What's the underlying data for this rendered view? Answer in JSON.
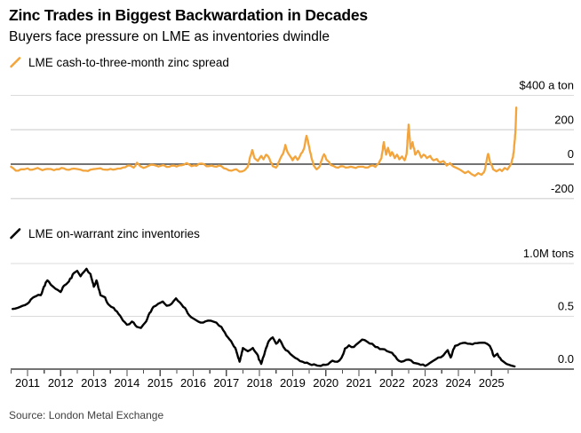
{
  "header": {
    "title": "Zinc Trades in Biggest Backwardation in Decades",
    "subtitle": "Buyers face pressure on LME as inventories dwindle"
  },
  "source": "Source: London Metal Exchange",
  "colors": {
    "spread_line": "#F3A43B",
    "inventory_line": "#000000",
    "gridline": "#DBDBDB",
    "zero_line": "#737373",
    "tick": "#4d4d4d"
  },
  "xaxis": {
    "tick_years": [
      "2011",
      "2012",
      "2013",
      "2014",
      "2015",
      "2016",
      "2017",
      "2018",
      "2019",
      "2020",
      "2021",
      "2022",
      "2023",
      "2024",
      "2025"
    ],
    "range": [
      2010.5,
      2026.0
    ]
  },
  "chart_data": [
    {
      "type": "line",
      "title": "LME cash-to-three-month zinc spread",
      "legend": "LME cash-to-three-month zinc spread",
      "color": "#F3A43B",
      "ylabel": "$ a ton",
      "ylim": [
        -260,
        430
      ],
      "grid": true,
      "zero_line": true,
      "yticks": {
        "values": [
          400,
          200,
          0,
          -200
        ],
        "labels": [
          "$400 a ton",
          "200",
          "0",
          "-200"
        ]
      },
      "points": [
        [
          2010.5,
          -15
        ],
        [
          2010.65,
          -38
        ],
        [
          2010.8,
          -30
        ],
        [
          2011.0,
          -25
        ],
        [
          2011.15,
          -32
        ],
        [
          2011.3,
          -22
        ],
        [
          2011.45,
          -35
        ],
        [
          2011.6,
          -28
        ],
        [
          2011.8,
          -35
        ],
        [
          2011.95,
          -30
        ],
        [
          2012.1,
          -25
        ],
        [
          2012.25,
          -33
        ],
        [
          2012.4,
          -26
        ],
        [
          2012.6,
          -32
        ],
        [
          2012.75,
          -38
        ],
        [
          2012.9,
          -32
        ],
        [
          2013.05,
          -28
        ],
        [
          2013.2,
          -24
        ],
        [
          2013.35,
          -32
        ],
        [
          2013.5,
          -28
        ],
        [
          2013.65,
          -30
        ],
        [
          2013.8,
          -26
        ],
        [
          2013.95,
          -18
        ],
        [
          2014.1,
          -8
        ],
        [
          2014.2,
          -20
        ],
        [
          2014.3,
          8
        ],
        [
          2014.4,
          -12
        ],
        [
          2014.5,
          -22
        ],
        [
          2014.65,
          -10
        ],
        [
          2014.8,
          -4
        ],
        [
          2014.95,
          -14
        ],
        [
          2015.1,
          -5
        ],
        [
          2015.2,
          -16
        ],
        [
          2015.35,
          -8
        ],
        [
          2015.5,
          -14
        ],
        [
          2015.65,
          -6
        ],
        [
          2015.8,
          6
        ],
        [
          2015.95,
          -12
        ],
        [
          2016.1,
          -10
        ],
        [
          2016.25,
          3
        ],
        [
          2016.4,
          -12
        ],
        [
          2016.55,
          -8
        ],
        [
          2016.7,
          -15
        ],
        [
          2016.85,
          -12
        ],
        [
          2017.0,
          -28
        ],
        [
          2017.15,
          -38
        ],
        [
          2017.3,
          -30
        ],
        [
          2017.4,
          -44
        ],
        [
          2017.55,
          -36
        ],
        [
          2017.65,
          -15
        ],
        [
          2017.72,
          45
        ],
        [
          2017.78,
          82
        ],
        [
          2017.85,
          35
        ],
        [
          2017.95,
          18
        ],
        [
          2018.05,
          48
        ],
        [
          2018.12,
          28
        ],
        [
          2018.2,
          55
        ],
        [
          2018.3,
          32
        ],
        [
          2018.4,
          -12
        ],
        [
          2018.5,
          -20
        ],
        [
          2018.57,
          8
        ],
        [
          2018.65,
          42
        ],
        [
          2018.72,
          65
        ],
        [
          2018.78,
          112
        ],
        [
          2018.85,
          68
        ],
        [
          2018.95,
          40
        ],
        [
          2019.0,
          22
        ],
        [
          2019.08,
          45
        ],
        [
          2019.15,
          25
        ],
        [
          2019.25,
          60
        ],
        [
          2019.35,
          95
        ],
        [
          2019.42,
          165
        ],
        [
          2019.5,
          100
        ],
        [
          2019.58,
          30
        ],
        [
          2019.65,
          -12
        ],
        [
          2019.72,
          -30
        ],
        [
          2019.8,
          -18
        ],
        [
          2019.88,
          25
        ],
        [
          2019.95,
          58
        ],
        [
          2020.05,
          20
        ],
        [
          2020.15,
          -5
        ],
        [
          2020.3,
          -18
        ],
        [
          2020.45,
          -12
        ],
        [
          2020.6,
          -20
        ],
        [
          2020.75,
          -15
        ],
        [
          2020.9,
          -22
        ],
        [
          2021.05,
          -15
        ],
        [
          2021.2,
          -20
        ],
        [
          2021.35,
          -10
        ],
        [
          2021.5,
          -16
        ],
        [
          2021.6,
          5
        ],
        [
          2021.68,
          35
        ],
        [
          2021.75,
          128
        ],
        [
          2021.82,
          55
        ],
        [
          2021.88,
          95
        ],
        [
          2021.95,
          48
        ],
        [
          2022.0,
          70
        ],
        [
          2022.08,
          35
        ],
        [
          2022.15,
          55
        ],
        [
          2022.22,
          28
        ],
        [
          2022.3,
          45
        ],
        [
          2022.38,
          22
        ],
        [
          2022.44,
          60
        ],
        [
          2022.5,
          230
        ],
        [
          2022.56,
          90
        ],
        [
          2022.62,
          128
        ],
        [
          2022.7,
          55
        ],
        [
          2022.78,
          78
        ],
        [
          2022.88,
          38
        ],
        [
          2022.95,
          55
        ],
        [
          2023.05,
          35
        ],
        [
          2023.15,
          48
        ],
        [
          2023.25,
          22
        ],
        [
          2023.35,
          30
        ],
        [
          2023.45,
          10
        ],
        [
          2023.55,
          18
        ],
        [
          2023.65,
          -8
        ],
        [
          2023.75,
          6
        ],
        [
          2023.85,
          -14
        ],
        [
          2023.95,
          -22
        ],
        [
          2024.1,
          -38
        ],
        [
          2024.2,
          -52
        ],
        [
          2024.3,
          -42
        ],
        [
          2024.4,
          -58
        ],
        [
          2024.5,
          -68
        ],
        [
          2024.6,
          -52
        ],
        [
          2024.7,
          -62
        ],
        [
          2024.78,
          -45
        ],
        [
          2024.85,
          15
        ],
        [
          2024.9,
          60
        ],
        [
          2024.97,
          5
        ],
        [
          2025.05,
          -30
        ],
        [
          2025.15,
          -42
        ],
        [
          2025.25,
          -30
        ],
        [
          2025.32,
          -40
        ],
        [
          2025.4,
          -22
        ],
        [
          2025.48,
          -32
        ],
        [
          2025.55,
          -12
        ],
        [
          2025.6,
          5
        ],
        [
          2025.65,
          40
        ],
        [
          2025.68,
          90
        ],
        [
          2025.72,
          180
        ],
        [
          2025.75,
          330
        ]
      ]
    },
    {
      "type": "line",
      "title": "LME on-warrant zinc inventories",
      "legend": "LME on-warrant zinc inventories",
      "color": "#000000",
      "ylabel": "M tons",
      "ylim": [
        0,
        1.05
      ],
      "grid": true,
      "zero_line": true,
      "yticks": {
        "values": [
          1.0,
          0.5,
          0.0
        ],
        "labels": [
          "1.0M tons",
          "0.5",
          "0.0"
        ]
      },
      "points": [
        [
          2010.55,
          0.57
        ],
        [
          2010.7,
          0.58
        ],
        [
          2010.85,
          0.6
        ],
        [
          2011.0,
          0.62
        ],
        [
          2011.1,
          0.66
        ],
        [
          2011.25,
          0.69
        ],
        [
          2011.4,
          0.7
        ],
        [
          2011.55,
          0.82
        ],
        [
          2011.6,
          0.84
        ],
        [
          2011.7,
          0.8
        ],
        [
          2011.85,
          0.76
        ],
        [
          2012.0,
          0.73
        ],
        [
          2012.1,
          0.79
        ],
        [
          2012.25,
          0.83
        ],
        [
          2012.4,
          0.91
        ],
        [
          2012.5,
          0.93
        ],
        [
          2012.6,
          0.88
        ],
        [
          2012.7,
          0.92
        ],
        [
          2012.78,
          0.95
        ],
        [
          2012.9,
          0.9
        ],
        [
          2013.0,
          0.78
        ],
        [
          2013.08,
          0.84
        ],
        [
          2013.2,
          0.7
        ],
        [
          2013.34,
          0.68
        ],
        [
          2013.45,
          0.61
        ],
        [
          2013.6,
          0.58
        ],
        [
          2013.75,
          0.52
        ],
        [
          2013.88,
          0.46
        ],
        [
          2014.0,
          0.42
        ],
        [
          2014.15,
          0.45
        ],
        [
          2014.3,
          0.4
        ],
        [
          2014.42,
          0.39
        ],
        [
          2014.55,
          0.44
        ],
        [
          2014.68,
          0.53
        ],
        [
          2014.8,
          0.59
        ],
        [
          2014.95,
          0.62
        ],
        [
          2015.08,
          0.64
        ],
        [
          2015.2,
          0.6
        ],
        [
          2015.35,
          0.62
        ],
        [
          2015.48,
          0.67
        ],
        [
          2015.6,
          0.63
        ],
        [
          2015.75,
          0.58
        ],
        [
          2015.88,
          0.51
        ],
        [
          2016.0,
          0.48
        ],
        [
          2016.15,
          0.45
        ],
        [
          2016.3,
          0.44
        ],
        [
          2016.45,
          0.46
        ],
        [
          2016.6,
          0.45
        ],
        [
          2016.7,
          0.44
        ],
        [
          2016.85,
          0.4
        ],
        [
          2016.95,
          0.35
        ],
        [
          2017.1,
          0.28
        ],
        [
          2017.27,
          0.2
        ],
        [
          2017.4,
          0.07
        ],
        [
          2017.5,
          0.2
        ],
        [
          2017.65,
          0.17
        ],
        [
          2017.8,
          0.2
        ],
        [
          2017.92,
          0.145
        ],
        [
          2018.05,
          0.05
        ],
        [
          2018.17,
          0.17
        ],
        [
          2018.28,
          0.265
        ],
        [
          2018.4,
          0.3
        ],
        [
          2018.5,
          0.24
        ],
        [
          2018.6,
          0.28
        ],
        [
          2018.72,
          0.21
        ],
        [
          2018.86,
          0.17
        ],
        [
          2019.0,
          0.125
        ],
        [
          2019.15,
          0.095
        ],
        [
          2019.3,
          0.07
        ],
        [
          2019.5,
          0.05
        ],
        [
          2019.65,
          0.045
        ],
        [
          2019.85,
          0.03
        ],
        [
          2020.0,
          0.04
        ],
        [
          2020.2,
          0.08
        ],
        [
          2020.35,
          0.07
        ],
        [
          2020.48,
          0.11
        ],
        [
          2020.58,
          0.195
        ],
        [
          2020.7,
          0.225
        ],
        [
          2020.85,
          0.21
        ],
        [
          2020.97,
          0.245
        ],
        [
          2021.1,
          0.28
        ],
        [
          2021.25,
          0.26
        ],
        [
          2021.4,
          0.24
        ],
        [
          2021.5,
          0.21
        ],
        [
          2021.7,
          0.19
        ],
        [
          2021.85,
          0.17
        ],
        [
          2022.0,
          0.155
        ],
        [
          2022.1,
          0.12
        ],
        [
          2022.2,
          0.08
        ],
        [
          2022.35,
          0.075
        ],
        [
          2022.5,
          0.09
        ],
        [
          2022.65,
          0.06
        ],
        [
          2022.8,
          0.05
        ],
        [
          2023.0,
          0.03
        ],
        [
          2023.15,
          0.06
        ],
        [
          2023.25,
          0.08
        ],
        [
          2023.4,
          0.11
        ],
        [
          2023.55,
          0.13
        ],
        [
          2023.68,
          0.18
        ],
        [
          2023.77,
          0.11
        ],
        [
          2023.9,
          0.22
        ],
        [
          2024.05,
          0.24
        ],
        [
          2024.2,
          0.25
        ],
        [
          2024.35,
          0.24
        ],
        [
          2024.5,
          0.245
        ],
        [
          2024.65,
          0.25
        ],
        [
          2024.8,
          0.25
        ],
        [
          2024.95,
          0.22
        ],
        [
          2025.08,
          0.12
        ],
        [
          2025.18,
          0.145
        ],
        [
          2025.3,
          0.085
        ],
        [
          2025.45,
          0.05
        ],
        [
          2025.58,
          0.035
        ],
        [
          2025.7,
          0.025
        ]
      ]
    }
  ]
}
